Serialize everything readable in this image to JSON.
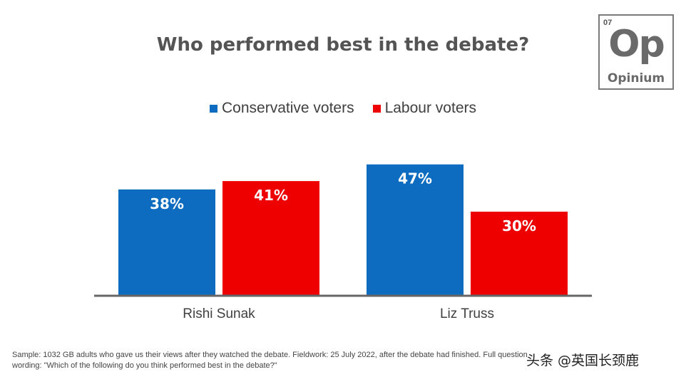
{
  "title": "Who performed best in the debate?",
  "logo": {
    "number": "07",
    "symbol": "Op",
    "name": "Opinium"
  },
  "footnote": "Sample: 1032 GB adults who gave us their views after they watched the debate. Fieldwork: 25 July 2022, after the debate had finished. Full question wording: \"Which of the following do you think performed best in the debate?\"",
  "watermark": "头条 @英国长颈鹿",
  "colors": {
    "conservative": "#0d6cc0",
    "labour": "#ef0000",
    "axis": "#666666",
    "text": "#545454"
  },
  "chart_data": {
    "type": "bar",
    "title": "Who performed best in the debate?",
    "categories": [
      "Rishi Sunak",
      "Liz Truss"
    ],
    "series": [
      {
        "name": "Conservative voters",
        "color": "#0d6cc0",
        "values": [
          38,
          47
        ],
        "labels": [
          "38%",
          "47%"
        ]
      },
      {
        "name": "Labour voters",
        "color": "#ef0000",
        "values": [
          41,
          30
        ],
        "labels": [
          "41%",
          "30%"
        ]
      }
    ],
    "ylim": [
      0,
      50
    ],
    "grid": false,
    "legend": "top-center",
    "xlabel": "",
    "ylabel": ""
  }
}
